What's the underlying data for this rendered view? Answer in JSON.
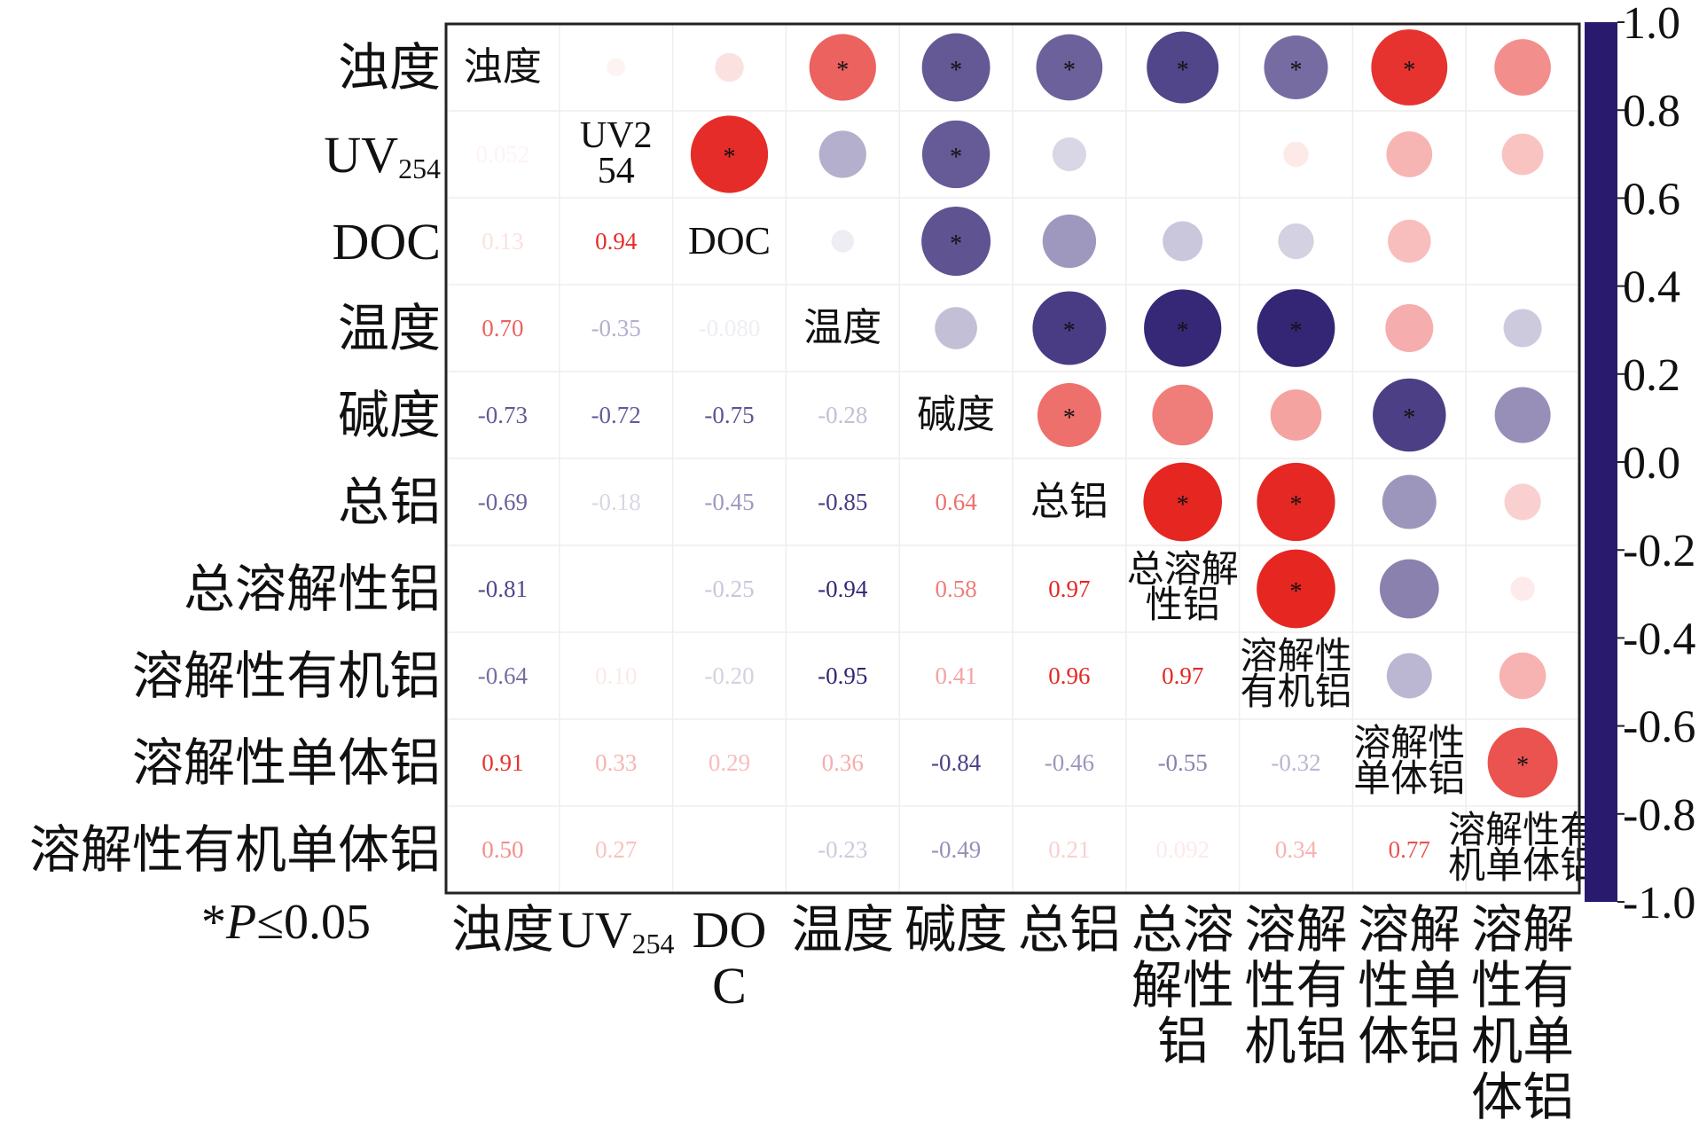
{
  "chart_data": {
    "type": "correlation-matrix",
    "variables": [
      "浊度",
      "UV254",
      "DOC",
      "温度",
      "碱度",
      "总铝",
      "总溶解性铝",
      "溶解性有机铝",
      "溶解性单体铝",
      "溶解性有机单体铝"
    ],
    "values": [
      [],
      [
        0.052
      ],
      [
        0.13,
        0.94
      ],
      [
        0.7,
        -0.35,
        -0.08
      ],
      [
        -0.73,
        -0.72,
        -0.75,
        -0.28
      ],
      [
        -0.69,
        -0.18,
        -0.45,
        -0.85,
        0.64
      ],
      [
        -0.81,
        null,
        -0.25,
        -0.94,
        0.58,
        0.97
      ],
      [
        -0.64,
        0.1,
        -0.2,
        -0.95,
        0.41,
        0.96,
        0.97
      ],
      [
        0.91,
        0.33,
        0.29,
        0.36,
        -0.84,
        -0.46,
        -0.55,
        -0.32
      ],
      [
        0.5,
        0.27,
        null,
        -0.23,
        -0.49,
        0.21,
        0.092,
        0.34,
        0.77
      ]
    ],
    "value_labels": [
      [],
      [
        "0.052"
      ],
      [
        "0.13",
        "0.94"
      ],
      [
        "0.70",
        "-0.35",
        "-0.080"
      ],
      [
        "-0.73",
        "-0.72",
        "-0.75",
        "-0.28"
      ],
      [
        "-0.69",
        "-0.18",
        "-0.45",
        "-0.85",
        "0.64"
      ],
      [
        "-0.81",
        null,
        "-0.25",
        "-0.94",
        "0.58",
        "0.97"
      ],
      [
        "-0.64",
        "0.10",
        "-0.20",
        "-0.95",
        "0.41",
        "0.96",
        "0.97"
      ],
      [
        "0.91",
        "0.33",
        "0.29",
        "0.36",
        "-0.84",
        "-0.46",
        "-0.55",
        "-0.32"
      ],
      [
        "0.50",
        "0.27",
        null,
        "-0.23",
        "-0.49",
        "0.21",
        "0.092",
        "0.34",
        "0.77"
      ]
    ],
    "significant": [
      [],
      [
        false
      ],
      [
        false,
        true
      ],
      [
        true,
        false,
        false
      ],
      [
        true,
        true,
        true,
        false
      ],
      [
        true,
        false,
        false,
        true,
        true
      ],
      [
        true,
        false,
        false,
        true,
        false,
        true
      ],
      [
        true,
        false,
        false,
        true,
        false,
        true,
        true
      ],
      [
        true,
        false,
        false,
        false,
        true,
        false,
        false,
        false
      ],
      [
        false,
        false,
        false,
        false,
        false,
        false,
        false,
        false,
        true
      ]
    ],
    "significance_marker": "*",
    "note": [
      "*",
      "P",
      "≤0.05"
    ],
    "colormap": [
      "#2a1a6e",
      "#ffffff",
      "#e41f1a"
    ],
    "clim": [
      -1,
      1
    ],
    "cticks": [
      {
        "value": 1,
        "label": "1.0"
      },
      0.8,
      0.6,
      0.4,
      0.2,
      {
        "value": 0,
        "label": "0.0"
      },
      -0.2,
      -0.4,
      -0.6,
      -0.8,
      {
        "value": -1,
        "label": "-1.0"
      }
    ]
  }
}
